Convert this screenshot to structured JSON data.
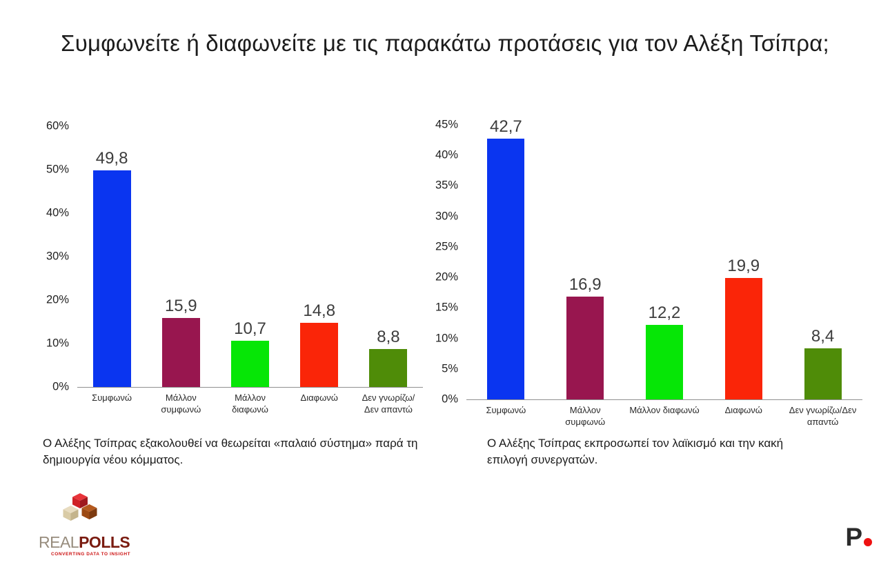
{
  "title": "Συμφωνείτε ή διαφωνείτε με τις παρακάτω προτάσεις για τον Αλέξη Τσίπρα;",
  "chart_data": [
    {
      "type": "bar",
      "caption": "Ο Αλέξης Τσίπρας εξακολουθεί να θεωρείται «παλαιό σύστημα» παρά τη δημιουργία νέου κόμματος.",
      "categories": [
        "Συμφωνώ",
        "Μάλλον συμφωνώ",
        "Μάλλον διαφωνώ",
        "Διαφωνώ",
        "Δεν γνωρίζω/Δεν απαντώ"
      ],
      "values": [
        49.8,
        15.9,
        10.7,
        14.8,
        8.8
      ],
      "value_labels": [
        "49,8",
        "15,9",
        "10,7",
        "14,8",
        "8,8"
      ],
      "bar_colors": [
        "#0a35f0",
        "#98164f",
        "#06e606",
        "#fa2508",
        "#4f8c08"
      ],
      "ylim": [
        0,
        60
      ],
      "ytick_step": 10,
      "ytick_labels": [
        "0%",
        "10%",
        "20%",
        "30%",
        "40%",
        "50%",
        "60%"
      ],
      "grid": false,
      "legend": "none"
    },
    {
      "type": "bar",
      "caption": "Ο Αλέξης Τσίπρας εκπροσωπεί τον λαϊκισμό και την κακή επιλογή συνεργατών.",
      "categories": [
        "Συμφωνώ",
        "Μάλλον συμφωνώ",
        "Μάλλον διαφωνώ",
        "Διαφωνώ",
        "Δεν γνωρίζω/Δεν απαντώ"
      ],
      "values": [
        42.7,
        16.9,
        12.2,
        19.9,
        8.4
      ],
      "value_labels": [
        "42,7",
        "16,9",
        "12,2",
        "19,9",
        "8,4"
      ],
      "bar_colors": [
        "#0a35f0",
        "#98164f",
        "#06e606",
        "#fa2508",
        "#4f8c08"
      ],
      "ylim": [
        0,
        45
      ],
      "ytick_step": 5,
      "ytick_labels": [
        "0%",
        "5%",
        "10%",
        "15%",
        "20%",
        "25%",
        "30%",
        "35%",
        "40%",
        "45%"
      ],
      "grid": false,
      "legend": "none"
    }
  ],
  "footer": {
    "realpolls": {
      "name_part1": "REAL",
      "name_part2": "POLLS",
      "tagline": "CONVERTING DATA TO INSIGHT",
      "brand_red": "#cc1111"
    },
    "prorata": {
      "letter": "P",
      "dot_color": "#ee1111"
    }
  }
}
